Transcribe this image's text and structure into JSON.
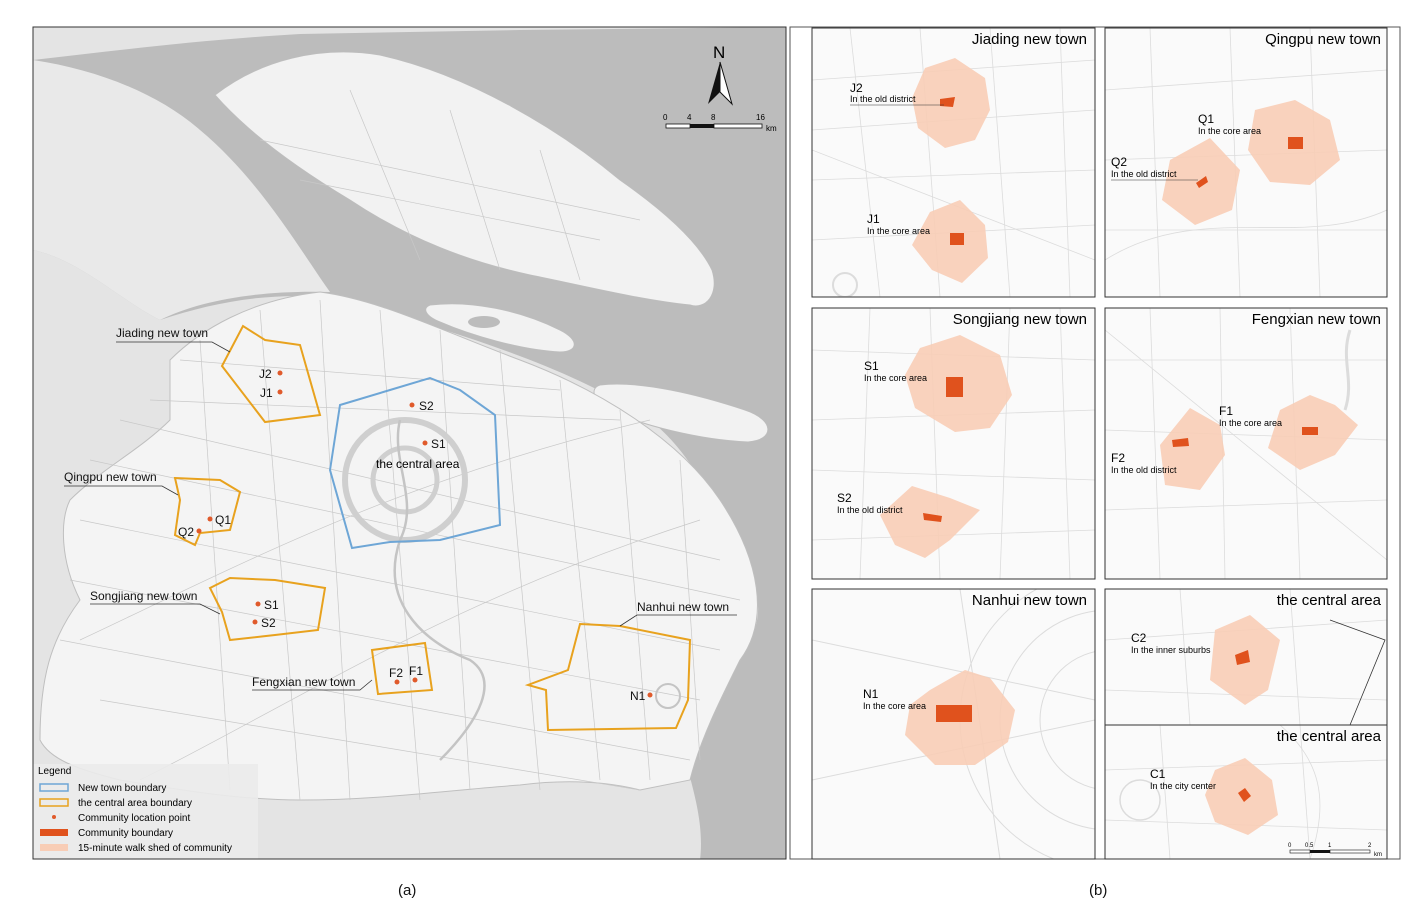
{
  "main_map": {
    "north_label": "N",
    "scale_ticks": [
      "0",
      "4",
      "8",
      "16"
    ],
    "scale_unit": "km",
    "central_area_label": "the central area",
    "new_towns": [
      {
        "label": "Jiading new town"
      },
      {
        "label": "Qingpu new town"
      },
      {
        "label": "Songjiang new town"
      },
      {
        "label": "Fengxian new town"
      },
      {
        "label": "Nanhui new town"
      }
    ],
    "communities": [
      "J2",
      "J1",
      "S2",
      "S1",
      "Q1",
      "Q2",
      "S1",
      "S2",
      "F2",
      "F1",
      "N1"
    ],
    "legend": {
      "title": "Legend",
      "items": [
        {
          "label": "New town boundary",
          "color": "#6ea6d6"
        },
        {
          "label": "the central area  boundary",
          "color": "#e8a21e"
        },
        {
          "label": "Community location point",
          "color": "#e05a2b"
        },
        {
          "label": "Community boundary",
          "color": "#e0521d"
        },
        {
          "label": "15-minute walk shed of community",
          "color": "#f8cdb6"
        }
      ]
    }
  },
  "insets": [
    {
      "title": "Jiading new town",
      "communities": [
        {
          "code": "J2",
          "desc": "In the old district"
        },
        {
          "code": "J1",
          "desc": "In the core area"
        }
      ]
    },
    {
      "title": "Qingpu new town",
      "communities": [
        {
          "code": "Q1",
          "desc": "In the core area"
        },
        {
          "code": "Q2",
          "desc": "In the old district"
        }
      ]
    },
    {
      "title": "Songjiang new town",
      "communities": [
        {
          "code": "S1",
          "desc": "In the core area"
        },
        {
          "code": "S2",
          "desc": "In the old district"
        }
      ]
    },
    {
      "title": "Fengxian new town",
      "communities": [
        {
          "code": "F1",
          "desc": "In the core area"
        },
        {
          "code": "F2",
          "desc": "In the old district"
        }
      ]
    },
    {
      "title": "Nanhui new town",
      "communities": [
        {
          "code": "N1",
          "desc": "In the core area"
        }
      ]
    },
    {
      "title": "the central area",
      "communities": [
        {
          "code": "C2",
          "desc": "In the inner suburbs"
        }
      ]
    },
    {
      "title": "the central area",
      "communities": [
        {
          "code": "C1",
          "desc": "In the city center"
        }
      ]
    }
  ],
  "inset_scale": {
    "ticks": [
      "0",
      "0.5",
      "1",
      "2"
    ],
    "unit": "km"
  },
  "captions": {
    "left": "(a)",
    "right": "(b)"
  }
}
